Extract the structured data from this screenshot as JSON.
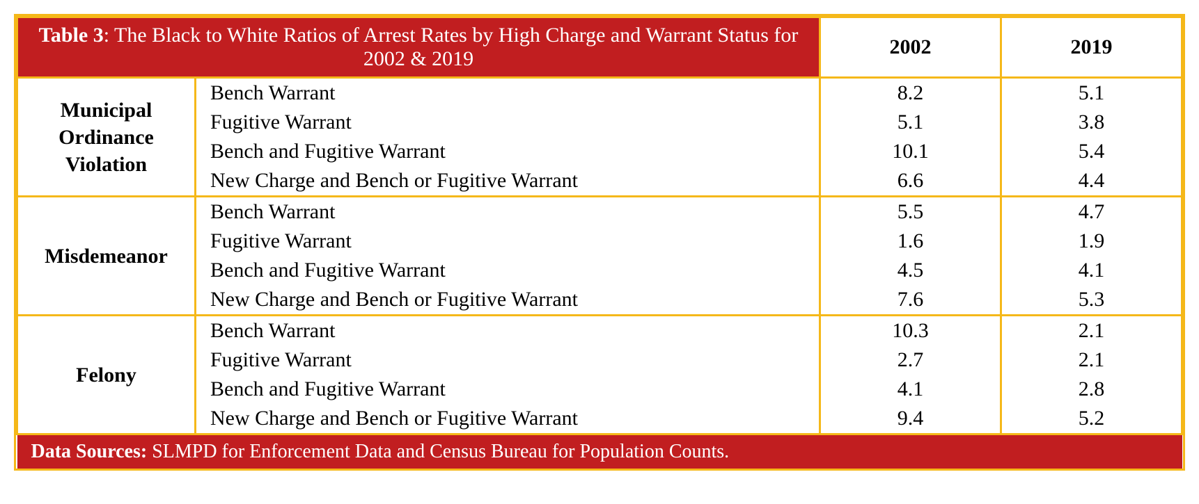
{
  "table": {
    "title_label": "Table 3",
    "title_text": ": The Black to White Ratios of Arrest Rates by High Charge and Warrant Status for 2002 & 2019",
    "columns": {
      "year1": "2002",
      "year2": "2019"
    },
    "categories": [
      {
        "name": "Municipal Ordinance Violation",
        "rows": [
          {
            "warrant": "Bench Warrant",
            "v2002": "8.2",
            "v2019": "5.1"
          },
          {
            "warrant": "Fugitive Warrant",
            "v2002": "5.1",
            "v2019": "3.8"
          },
          {
            "warrant": "Bench and Fugitive Warrant",
            "v2002": "10.1",
            "v2019": "5.4"
          },
          {
            "warrant": "New Charge and Bench or Fugitive Warrant",
            "v2002": "6.6",
            "v2019": "4.4"
          }
        ]
      },
      {
        "name": "Misdemeanor",
        "rows": [
          {
            "warrant": "Bench Warrant",
            "v2002": "5.5",
            "v2019": "4.7"
          },
          {
            "warrant": "Fugitive Warrant",
            "v2002": "1.6",
            "v2019": "1.9"
          },
          {
            "warrant": "Bench and Fugitive Warrant",
            "v2002": "4.5",
            "v2019": "4.1"
          },
          {
            "warrant": "New Charge and Bench or Fugitive Warrant",
            "v2002": "7.6",
            "v2019": "5.3"
          }
        ]
      },
      {
        "name": "Felony",
        "rows": [
          {
            "warrant": "Bench Warrant",
            "v2002": "10.3",
            "v2019": "2.1"
          },
          {
            "warrant": "Fugitive Warrant",
            "v2002": "2.7",
            "v2019": "2.1"
          },
          {
            "warrant": "Bench and Fugitive Warrant",
            "v2002": "4.1",
            "v2019": "2.8"
          },
          {
            "warrant": "New Charge and Bench or Fugitive Warrant",
            "v2002": "9.4",
            "v2019": "5.2"
          }
        ]
      }
    ],
    "footer_label": "Data Sources:",
    "footer_text": " SLMPD for Enforcement Data and Census Bureau for Population Counts."
  },
  "style": {
    "border_color": "#f5b819",
    "header_bg": "#c11e20",
    "header_text": "#ffffff",
    "body_bg": "#ffffff",
    "body_text": "#000000",
    "title_fontsize": 30,
    "cell_fontsize": 30,
    "footer_fontsize": 28,
    "font_family": "Georgia, Times New Roman, serif"
  }
}
